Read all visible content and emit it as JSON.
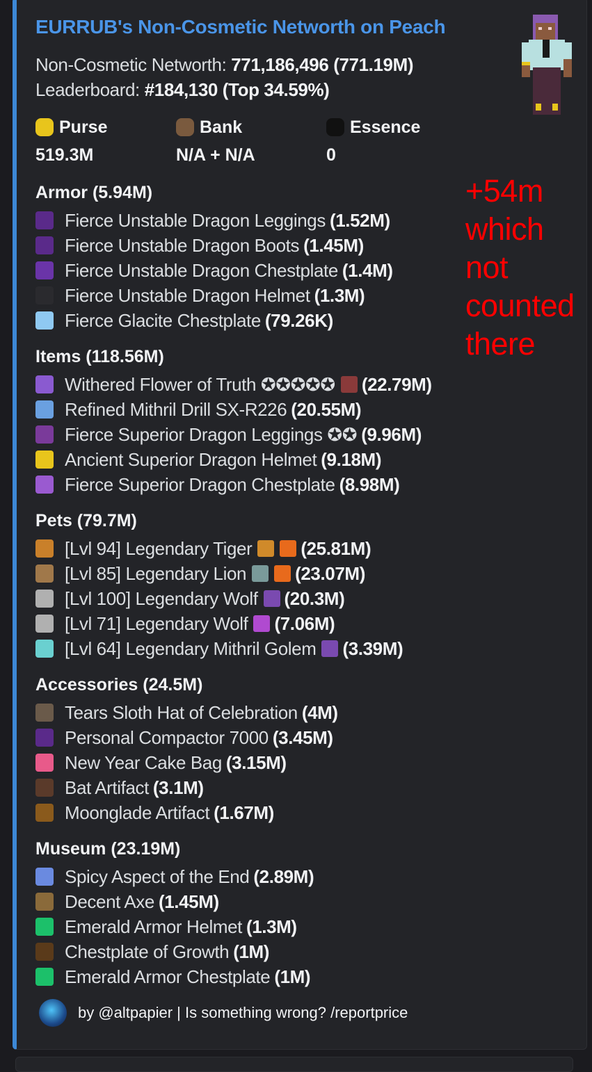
{
  "colors": {
    "accent": "#3d88d6",
    "title": "#4a95e8",
    "annotation": "#ff0000",
    "background": "#232428"
  },
  "title": "EURRUB's Non-Cosmetic Networth on Peach",
  "networth": {
    "label": "Non-Cosmetic Networth: ",
    "value": "771,186,496 (771.19M)"
  },
  "leaderboard": {
    "label": "Leaderboard: ",
    "rank": "#184,130",
    "top": "(Top 34.59%)"
  },
  "stats": [
    {
      "label": "Purse",
      "value": "519.3M",
      "icon": "gold-ingot-icon",
      "color": "#e8c51c"
    },
    {
      "label": "Bank",
      "value": "N/A + N/A",
      "icon": "money-bag-icon",
      "color": "#7a5a3e"
    },
    {
      "label": "Essence",
      "value": "0",
      "icon": "essence-icon",
      "color": "#111111"
    }
  ],
  "sections": [
    {
      "heading": "Armor (5.94M)",
      "items": [
        {
          "name": "Fierce Unstable Dragon Leggings",
          "value": "(1.52M)",
          "icon": "leggings-icon",
          "color": "#5a2a8a"
        },
        {
          "name": "Fierce Unstable Dragon Boots",
          "value": "(1.45M)",
          "icon": "boots-icon",
          "color": "#5a2a8a"
        },
        {
          "name": "Fierce Unstable Dragon Chestplate",
          "value": "(1.4M)",
          "icon": "chestplate-icon",
          "color": "#6a34a8"
        },
        {
          "name": "Fierce Unstable Dragon Helmet",
          "value": "(1.3M)",
          "icon": "dragon-head-icon",
          "color": "#2a2a2e"
        },
        {
          "name": "Fierce Glacite Chestplate",
          "value": "(79.26K)",
          "icon": "chestplate-icon",
          "color": "#8fc9f2"
        }
      ]
    },
    {
      "heading": "Items (118.56M)",
      "items": [
        {
          "name": "Withered Flower of Truth ✪✪✪✪✪",
          "extra": [
            "gemstone-icon"
          ],
          "extraColors": [
            "#8a3a3a"
          ],
          "value": "(22.79M)",
          "icon": "flower-staff-icon",
          "color": "#8a5ad0"
        },
        {
          "name": "Refined Mithril Drill SX-R226",
          "value": "(20.55M)",
          "icon": "drill-icon",
          "color": "#6aa0e0"
        },
        {
          "name": "Fierce Superior Dragon Leggings ✪✪",
          "value": "(9.96M)",
          "icon": "leggings-icon",
          "color": "#7a3a9a"
        },
        {
          "name": "Ancient Superior Dragon Helmet",
          "value": "(9.18M)",
          "icon": "dragon-head-icon",
          "color": "#e8c51c"
        },
        {
          "name": "Fierce Superior Dragon Chestplate",
          "value": "(8.98M)",
          "icon": "chestplate-icon",
          "color": "#9a5ad0"
        }
      ]
    },
    {
      "heading": "Pets (79.7M)",
      "items": [
        {
          "name": "[Lvl 94] Legendary Tiger",
          "extra": [
            "tiger-skin-icon",
            "carrot-icon"
          ],
          "extraColors": [
            "#d08a2a",
            "#e86a1c"
          ],
          "value": "(25.81M)",
          "icon": "tiger-icon",
          "color": "#c9802a"
        },
        {
          "name": "[Lvl 85] Legendary Lion",
          "extra": [
            "armor-stand-icon",
            "carrot-icon"
          ],
          "extraColors": [
            "#7a9a9a",
            "#e86a1c"
          ],
          "value": "(23.07M)",
          "icon": "lion-icon",
          "color": "#a0784a"
        },
        {
          "name": "[Lvl 100] Legendary Wolf",
          "extra": [
            "pickaxe-icon"
          ],
          "extraColors": [
            "#7a4ab0"
          ],
          "value": "(20.3M)",
          "icon": "wolf-icon",
          "color": "#b0b0b0"
        },
        {
          "name": "[Lvl 71] Legendary Wolf",
          "extra": [
            "sword-icon"
          ],
          "extraColors": [
            "#b04ad0"
          ],
          "value": "(7.06M)",
          "icon": "wolf-icon",
          "color": "#b0b0b0"
        },
        {
          "name": "[Lvl 64] Legendary Mithril Golem",
          "extra": [
            "pickaxe-icon"
          ],
          "extraColors": [
            "#7a4ab0"
          ],
          "value": "(3.39M)",
          "icon": "golem-icon",
          "color": "#6ad0d0"
        }
      ]
    },
    {
      "heading": "Accessories (24.5M)",
      "items": [
        {
          "name": "Tears Sloth Hat of Celebration",
          "value": "(4M)",
          "icon": "sloth-hat-icon",
          "color": "#6a5a4a"
        },
        {
          "name": "Personal Compactor 7000",
          "value": "(3.45M)",
          "icon": "compactor-icon",
          "color": "#5a2a8a"
        },
        {
          "name": "New Year Cake Bag",
          "value": "(3.15M)",
          "icon": "cake-bag-icon",
          "color": "#e85a8a"
        },
        {
          "name": "Bat Artifact",
          "value": "(3.1M)",
          "icon": "bat-icon",
          "color": "#5a3a2a"
        },
        {
          "name": "Moonglade Artifact",
          "value": "(1.67M)",
          "icon": "moonglade-icon",
          "color": "#8a5a1c"
        }
      ]
    },
    {
      "heading": "Museum (23.19M)",
      "items": [
        {
          "name": "Spicy Aspect of the End",
          "value": "(2.89M)",
          "icon": "sword-icon",
          "color": "#6a8ae0"
        },
        {
          "name": "Decent Axe",
          "value": "(1.45M)",
          "icon": "axe-icon",
          "color": "#8a6a3a"
        },
        {
          "name": "Emerald Armor Helmet",
          "value": "(1.3M)",
          "icon": "helmet-icon",
          "color": "#1cc06a"
        },
        {
          "name": "Chestplate of Growth",
          "value": "(1M)",
          "icon": "chestplate-icon",
          "color": "#5a3a1a"
        },
        {
          "name": "Emerald Armor Chestplate",
          "value": "(1M)",
          "icon": "chestplate-icon",
          "color": "#1cc06a"
        }
      ]
    }
  ],
  "annotation": [
    "+54m",
    "which not",
    "counted there"
  ],
  "footer": {
    "text": "by @altpapier | Is something wrong? /reportprice"
  }
}
